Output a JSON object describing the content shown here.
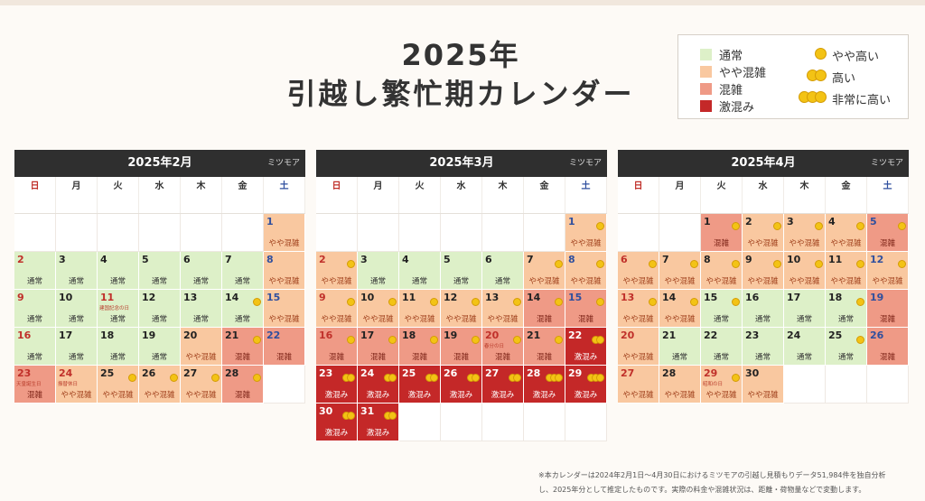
{
  "title": {
    "line1": "2025年",
    "line2": "引越し繁忙期カレンダー"
  },
  "legend": {
    "levels": [
      {
        "label": "通常",
        "color": "#ddf0c8"
      },
      {
        "label": "やや混雑",
        "color": "#f9c8a0"
      },
      {
        "label": "混雑",
        "color": "#ef9a86"
      },
      {
        "label": "激混み",
        "color": "#c42828"
      }
    ],
    "costs": [
      {
        "label": "やや高い",
        "coins": 1
      },
      {
        "label": "高い",
        "coins": 2
      },
      {
        "label": "非常に高い",
        "coins": 3
      }
    ]
  },
  "weekdays": [
    "日",
    "月",
    "火",
    "水",
    "木",
    "金",
    "土"
  ],
  "brand": "ミツモア",
  "level_labels": {
    "1": "通常",
    "2": "やや混雑",
    "3": "混雑",
    "4": "激混み"
  },
  "calendars": [
    {
      "title": "2025年2月",
      "start": 6,
      "days": [
        {
          "d": 1,
          "lv": 2,
          "c": 0
        },
        {
          "d": 2,
          "lv": 1,
          "c": 0
        },
        {
          "d": 3,
          "lv": 1,
          "c": 0
        },
        {
          "d": 4,
          "lv": 1,
          "c": 0
        },
        {
          "d": 5,
          "lv": 1,
          "c": 0
        },
        {
          "d": 6,
          "lv": 1,
          "c": 0
        },
        {
          "d": 7,
          "lv": 1,
          "c": 0
        },
        {
          "d": 8,
          "lv": 2,
          "c": 0
        },
        {
          "d": 9,
          "lv": 1,
          "c": 0
        },
        {
          "d": 10,
          "lv": 1,
          "c": 0
        },
        {
          "d": 11,
          "lv": 1,
          "c": 0,
          "h": "建国記念の日"
        },
        {
          "d": 12,
          "lv": 1,
          "c": 0
        },
        {
          "d": 13,
          "lv": 1,
          "c": 0
        },
        {
          "d": 14,
          "lv": 1,
          "c": 1
        },
        {
          "d": 15,
          "lv": 2,
          "c": 0
        },
        {
          "d": 16,
          "lv": 1,
          "c": 0
        },
        {
          "d": 17,
          "lv": 1,
          "c": 0
        },
        {
          "d": 18,
          "lv": 1,
          "c": 0
        },
        {
          "d": 19,
          "lv": 1,
          "c": 0
        },
        {
          "d": 20,
          "lv": 2,
          "c": 0
        },
        {
          "d": 21,
          "lv": 3,
          "c": 1
        },
        {
          "d": 22,
          "lv": 3,
          "c": 0
        },
        {
          "d": 23,
          "lv": 3,
          "c": 0,
          "h": "天皇誕生日"
        },
        {
          "d": 24,
          "lv": 2,
          "c": 0,
          "h": "振替休日"
        },
        {
          "d": 25,
          "lv": 2,
          "c": 1
        },
        {
          "d": 26,
          "lv": 2,
          "c": 1
        },
        {
          "d": 27,
          "lv": 2,
          "c": 1
        },
        {
          "d": 28,
          "lv": 3,
          "c": 1
        }
      ]
    },
    {
      "title": "2025年3月",
      "start": 6,
      "days": [
        {
          "d": 1,
          "lv": 2,
          "c": 1
        },
        {
          "d": 2,
          "lv": 2,
          "c": 1
        },
        {
          "d": 3,
          "lv": 1,
          "c": 0
        },
        {
          "d": 4,
          "lv": 1,
          "c": 0
        },
        {
          "d": 5,
          "lv": 1,
          "c": 0
        },
        {
          "d": 6,
          "lv": 1,
          "c": 0
        },
        {
          "d": 7,
          "lv": 2,
          "c": 1
        },
        {
          "d": 8,
          "lv": 2,
          "c": 1
        },
        {
          "d": 9,
          "lv": 2,
          "c": 1
        },
        {
          "d": 10,
          "lv": 2,
          "c": 1
        },
        {
          "d": 11,
          "lv": 2,
          "c": 1
        },
        {
          "d": 12,
          "lv": 2,
          "c": 1
        },
        {
          "d": 13,
          "lv": 2,
          "c": 1
        },
        {
          "d": 14,
          "lv": 3,
          "c": 1
        },
        {
          "d": 15,
          "lv": 3,
          "c": 1
        },
        {
          "d": 16,
          "lv": 3,
          "c": 1
        },
        {
          "d": 17,
          "lv": 3,
          "c": 1
        },
        {
          "d": 18,
          "lv": 3,
          "c": 1
        },
        {
          "d": 19,
          "lv": 3,
          "c": 1
        },
        {
          "d": 20,
          "lv": 3,
          "c": 1,
          "h": "春分の日"
        },
        {
          "d": 21,
          "lv": 3,
          "c": 1
        },
        {
          "d": 22,
          "lv": 4,
          "c": 2
        },
        {
          "d": 23,
          "lv": 4,
          "c": 2
        },
        {
          "d": 24,
          "lv": 4,
          "c": 2
        },
        {
          "d": 25,
          "lv": 4,
          "c": 2
        },
        {
          "d": 26,
          "lv": 4,
          "c": 2
        },
        {
          "d": 27,
          "lv": 4,
          "c": 2
        },
        {
          "d": 28,
          "lv": 4,
          "c": 3
        },
        {
          "d": 29,
          "lv": 4,
          "c": 3
        },
        {
          "d": 30,
          "lv": 4,
          "c": 2
        },
        {
          "d": 31,
          "lv": 4,
          "c": 2
        }
      ]
    },
    {
      "title": "2025年4月",
      "start": 2,
      "days": [
        {
          "d": 1,
          "lv": 3,
          "c": 1
        },
        {
          "d": 2,
          "lv": 2,
          "c": 1
        },
        {
          "d": 3,
          "lv": 2,
          "c": 1
        },
        {
          "d": 4,
          "lv": 2,
          "c": 1
        },
        {
          "d": 5,
          "lv": 3,
          "c": 1
        },
        {
          "d": 6,
          "lv": 2,
          "c": 1
        },
        {
          "d": 7,
          "lv": 2,
          "c": 1
        },
        {
          "d": 8,
          "lv": 2,
          "c": 1
        },
        {
          "d": 9,
          "lv": 2,
          "c": 1
        },
        {
          "d": 10,
          "lv": 2,
          "c": 1
        },
        {
          "d": 11,
          "lv": 2,
          "c": 1
        },
        {
          "d": 12,
          "lv": 2,
          "c": 1
        },
        {
          "d": 13,
          "lv": 2,
          "c": 1
        },
        {
          "d": 14,
          "lv": 2,
          "c": 1
        },
        {
          "d": 15,
          "lv": 1,
          "c": 1
        },
        {
          "d": 16,
          "lv": 1,
          "c": 0
        },
        {
          "d": 17,
          "lv": 1,
          "c": 0
        },
        {
          "d": 18,
          "lv": 1,
          "c": 1
        },
        {
          "d": 19,
          "lv": 3,
          "c": 0
        },
        {
          "d": 20,
          "lv": 2,
          "c": 0
        },
        {
          "d": 21,
          "lv": 1,
          "c": 0
        },
        {
          "d": 22,
          "lv": 1,
          "c": 0
        },
        {
          "d": 23,
          "lv": 1,
          "c": 0
        },
        {
          "d": 24,
          "lv": 1,
          "c": 0
        },
        {
          "d": 25,
          "lv": 1,
          "c": 1
        },
        {
          "d": 26,
          "lv": 3,
          "c": 0
        },
        {
          "d": 27,
          "lv": 2,
          "c": 0
        },
        {
          "d": 28,
          "lv": 2,
          "c": 0
        },
        {
          "d": 29,
          "lv": 2,
          "c": 1,
          "h": "昭和の日"
        },
        {
          "d": 30,
          "lv": 2,
          "c": 0
        }
      ]
    }
  ],
  "note": {
    "line1": "※本カレンダーは2024年2月1日〜4月30日におけるミツモアの引越し見積もりデータ51,984件を独自分析",
    "line2": "し、2025年分として推定したものです。実際の料金や混雑状況は、距離・荷物量などで変動します。"
  }
}
